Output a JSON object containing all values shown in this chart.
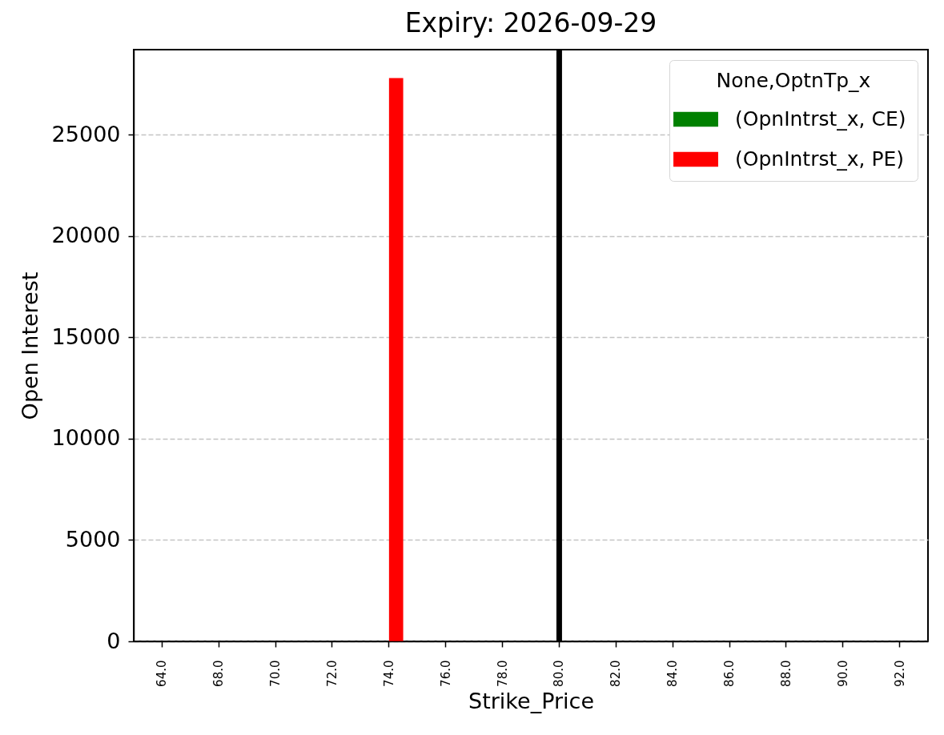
{
  "chart_data": {
    "type": "bar",
    "title": "Expiry: 2026-09-29",
    "xlabel": "Strike_Price",
    "ylabel": "Open Interest",
    "legend_title": "None,OptnTp_x",
    "categories": [
      "64.0",
      "68.0",
      "70.0",
      "72.0",
      "74.0",
      "76.0",
      "78.0",
      "80.0",
      "82.0",
      "84.0",
      "86.0",
      "88.0",
      "90.0",
      "92.0"
    ],
    "series": [
      {
        "name": "(OpnIntrst_x, CE)",
        "color": "#008000",
        "values": [
          null,
          null,
          null,
          null,
          null,
          null,
          null,
          null,
          null,
          null,
          null,
          null,
          null,
          null
        ]
      },
      {
        "name": "(OpnIntrst_x, PE)",
        "color": "#ff0000",
        "values": [
          null,
          null,
          null,
          null,
          27800,
          null,
          null,
          null,
          null,
          null,
          null,
          null,
          null,
          null
        ]
      }
    ],
    "ylim": [
      0,
      29200
    ],
    "yticks": [
      0,
      5000,
      10000,
      15000,
      20000,
      25000
    ],
    "grid": "y",
    "legend": "top right",
    "ref_lines": [
      {
        "axis": "x",
        "value": "80.0",
        "color": "#000000"
      }
    ]
  }
}
